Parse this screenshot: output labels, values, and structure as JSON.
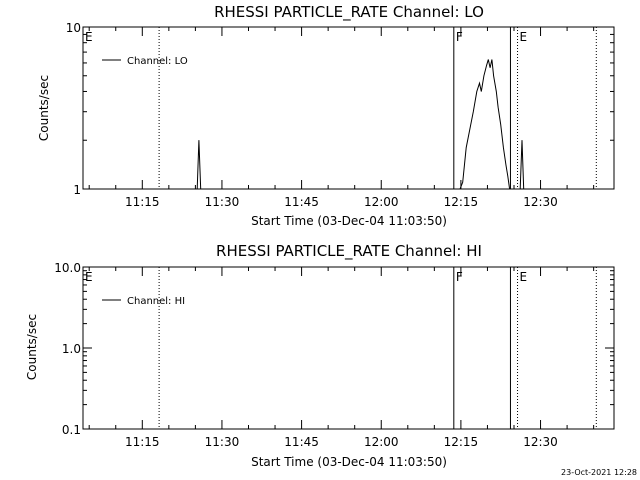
{
  "footer_timestamp": "23-Oct-2021 12:28",
  "colors": {
    "background": "#ffffff",
    "foreground": "#000000"
  },
  "chart_data": [
    {
      "type": "line",
      "title": "RHESSI PARTICLE_RATE Channel: LO",
      "xlabel": "Start Time (03-Dec-04 11:03:50)",
      "ylabel": "Counts/sec",
      "yscale": "log",
      "ylim": [
        1,
        10
      ],
      "xlim": [
        "11:03:50",
        "12:43:50"
      ],
      "x_tick_labels": [
        "11:15",
        "11:30",
        "11:45",
        "12:00",
        "12:15",
        "12:30"
      ],
      "y_tick_labels": [
        "1",
        "10"
      ],
      "legend": {
        "entries": [
          "Channel: LO"
        ],
        "placement": "top-left"
      },
      "markers": [
        {
          "label": "E",
          "time": "11:03:50",
          "style": "solid"
        },
        {
          "label": "",
          "time": "11:18:10",
          "style": "dotted"
        },
        {
          "label": "F",
          "time": "12:13:40",
          "style": "solid"
        },
        {
          "label": "",
          "time": "12:24:20",
          "style": "solid"
        },
        {
          "label": "E",
          "time": "12:25:40",
          "style": "dotted"
        },
        {
          "label": "",
          "time": "12:40:30",
          "style": "dotted"
        }
      ],
      "series": [
        {
          "name": "Channel: LO",
          "points": [
            [
              "11:03:50",
              1
            ],
            [
              "11:25:20",
              1
            ],
            [
              "11:25:40",
              2.0
            ],
            [
              "11:26:00",
              1
            ],
            [
              "12:14:50",
              1
            ],
            [
              "12:15:20",
              1.1
            ],
            [
              "12:16:00",
              1.8
            ],
            [
              "12:17:20",
              3.0
            ],
            [
              "12:18:00",
              4.0
            ],
            [
              "12:18:30",
              4.5
            ],
            [
              "12:18:50",
              4.0
            ],
            [
              "12:19:20",
              5.0
            ],
            [
              "12:19:50",
              5.8
            ],
            [
              "12:20:10",
              6.3
            ],
            [
              "12:20:30",
              5.6
            ],
            [
              "12:20:50",
              6.3
            ],
            [
              "12:21:10",
              5.0
            ],
            [
              "12:21:40",
              4.0
            ],
            [
              "12:22:00",
              3.2
            ],
            [
              "12:22:30",
              2.5
            ],
            [
              "12:23:00",
              1.8
            ],
            [
              "12:23:30",
              1.4
            ],
            [
              "12:23:50",
              1.2
            ],
            [
              "12:24:10",
              1
            ],
            [
              "12:26:10",
              1
            ],
            [
              "12:26:30",
              2.0
            ],
            [
              "12:26:50",
              1
            ],
            [
              "12:43:50",
              1
            ]
          ]
        }
      ]
    },
    {
      "type": "line",
      "title": "RHESSI PARTICLE_RATE Channel: HI",
      "xlabel": "Start Time (03-Dec-04 11:03:50)",
      "ylabel": "Counts/sec",
      "yscale": "log",
      "ylim": [
        0.1,
        10
      ],
      "xlim": [
        "11:03:50",
        "12:43:50"
      ],
      "x_tick_labels": [
        "11:15",
        "11:30",
        "11:45",
        "12:00",
        "12:15",
        "12:30"
      ],
      "y_tick_labels": [
        "0.1",
        "1.0",
        "10.0"
      ],
      "legend": {
        "entries": [
          "Channel: HI"
        ],
        "placement": "top-left"
      },
      "markers": [
        {
          "label": "E",
          "time": "11:03:50",
          "style": "solid"
        },
        {
          "label": "",
          "time": "11:18:10",
          "style": "dotted"
        },
        {
          "label": "F",
          "time": "12:13:40",
          "style": "solid"
        },
        {
          "label": "",
          "time": "12:24:20",
          "style": "solid"
        },
        {
          "label": "E",
          "time": "12:25:40",
          "style": "dotted"
        },
        {
          "label": "",
          "time": "12:40:30",
          "style": "dotted"
        }
      ],
      "series": [
        {
          "name": "Channel: HI",
          "points": []
        }
      ]
    }
  ]
}
